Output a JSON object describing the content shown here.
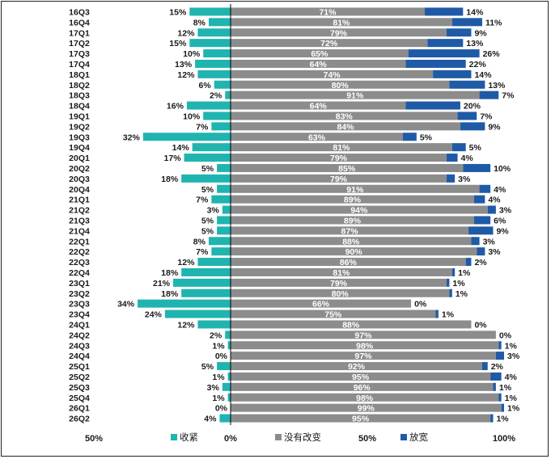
{
  "chart_data": {
    "type": "bar",
    "stacked": true,
    "orientation": "horizontal",
    "categories": [
      "16Q3",
      "16Q4",
      "17Q1",
      "17Q2",
      "17Q3",
      "17Q4",
      "18Q1",
      "18Q2",
      "18Q3",
      "18Q4",
      "19Q1",
      "19Q2",
      "19Q3",
      "19Q4",
      "20Q1",
      "20Q2",
      "20Q3",
      "20Q4",
      "21Q1",
      "21Q2",
      "21Q3",
      "21Q4",
      "22Q1",
      "22Q2",
      "22Q3",
      "22Q4",
      "23Q1",
      "23Q2",
      "23Q3",
      "23Q4",
      "24Q1",
      "24Q2",
      "24Q3",
      "24Q4",
      "25Q1",
      "25Q2",
      "25Q3",
      "25Q4",
      "26Q1",
      "26Q2"
    ],
    "series": [
      {
        "name": "收紧",
        "color": "#1FB4B0",
        "values": [
          15,
          8,
          12,
          15,
          10,
          13,
          12,
          6,
          2,
          16,
          10,
          7,
          32,
          14,
          17,
          5,
          18,
          5,
          7,
          3,
          5,
          5,
          8,
          7,
          12,
          18,
          21,
          18,
          34,
          24,
          12,
          2,
          1,
          0,
          5,
          1,
          3,
          1,
          0,
          4
        ]
      },
      {
        "name": "没有改变",
        "color": "#8C8C8C",
        "values": [
          71,
          81,
          79,
          72,
          65,
          64,
          74,
          80,
          91,
          64,
          83,
          84,
          63,
          81,
          79,
          85,
          79,
          91,
          89,
          94,
          89,
          87,
          88,
          90,
          86,
          81,
          79,
          80,
          66,
          75,
          88,
          97,
          98,
          97,
          92,
          95,
          96,
          98,
          99,
          95
        ]
      },
      {
        "name": "放宽",
        "color": "#1F5AA6",
        "values": [
          14,
          11,
          9,
          13,
          26,
          22,
          14,
          13,
          7,
          20,
          7,
          9,
          5,
          5,
          4,
          10,
          3,
          4,
          4,
          3,
          6,
          9,
          3,
          3,
          2,
          1,
          1,
          1,
          0,
          1,
          0,
          0,
          1,
          3,
          2,
          4,
          1,
          1,
          1,
          1
        ]
      }
    ],
    "x_ticks": [
      "50%",
      "0%",
      "50%",
      "100%"
    ],
    "xlim": [
      -50,
      100
    ],
    "legend_position": "bottom",
    "grid": false
  }
}
